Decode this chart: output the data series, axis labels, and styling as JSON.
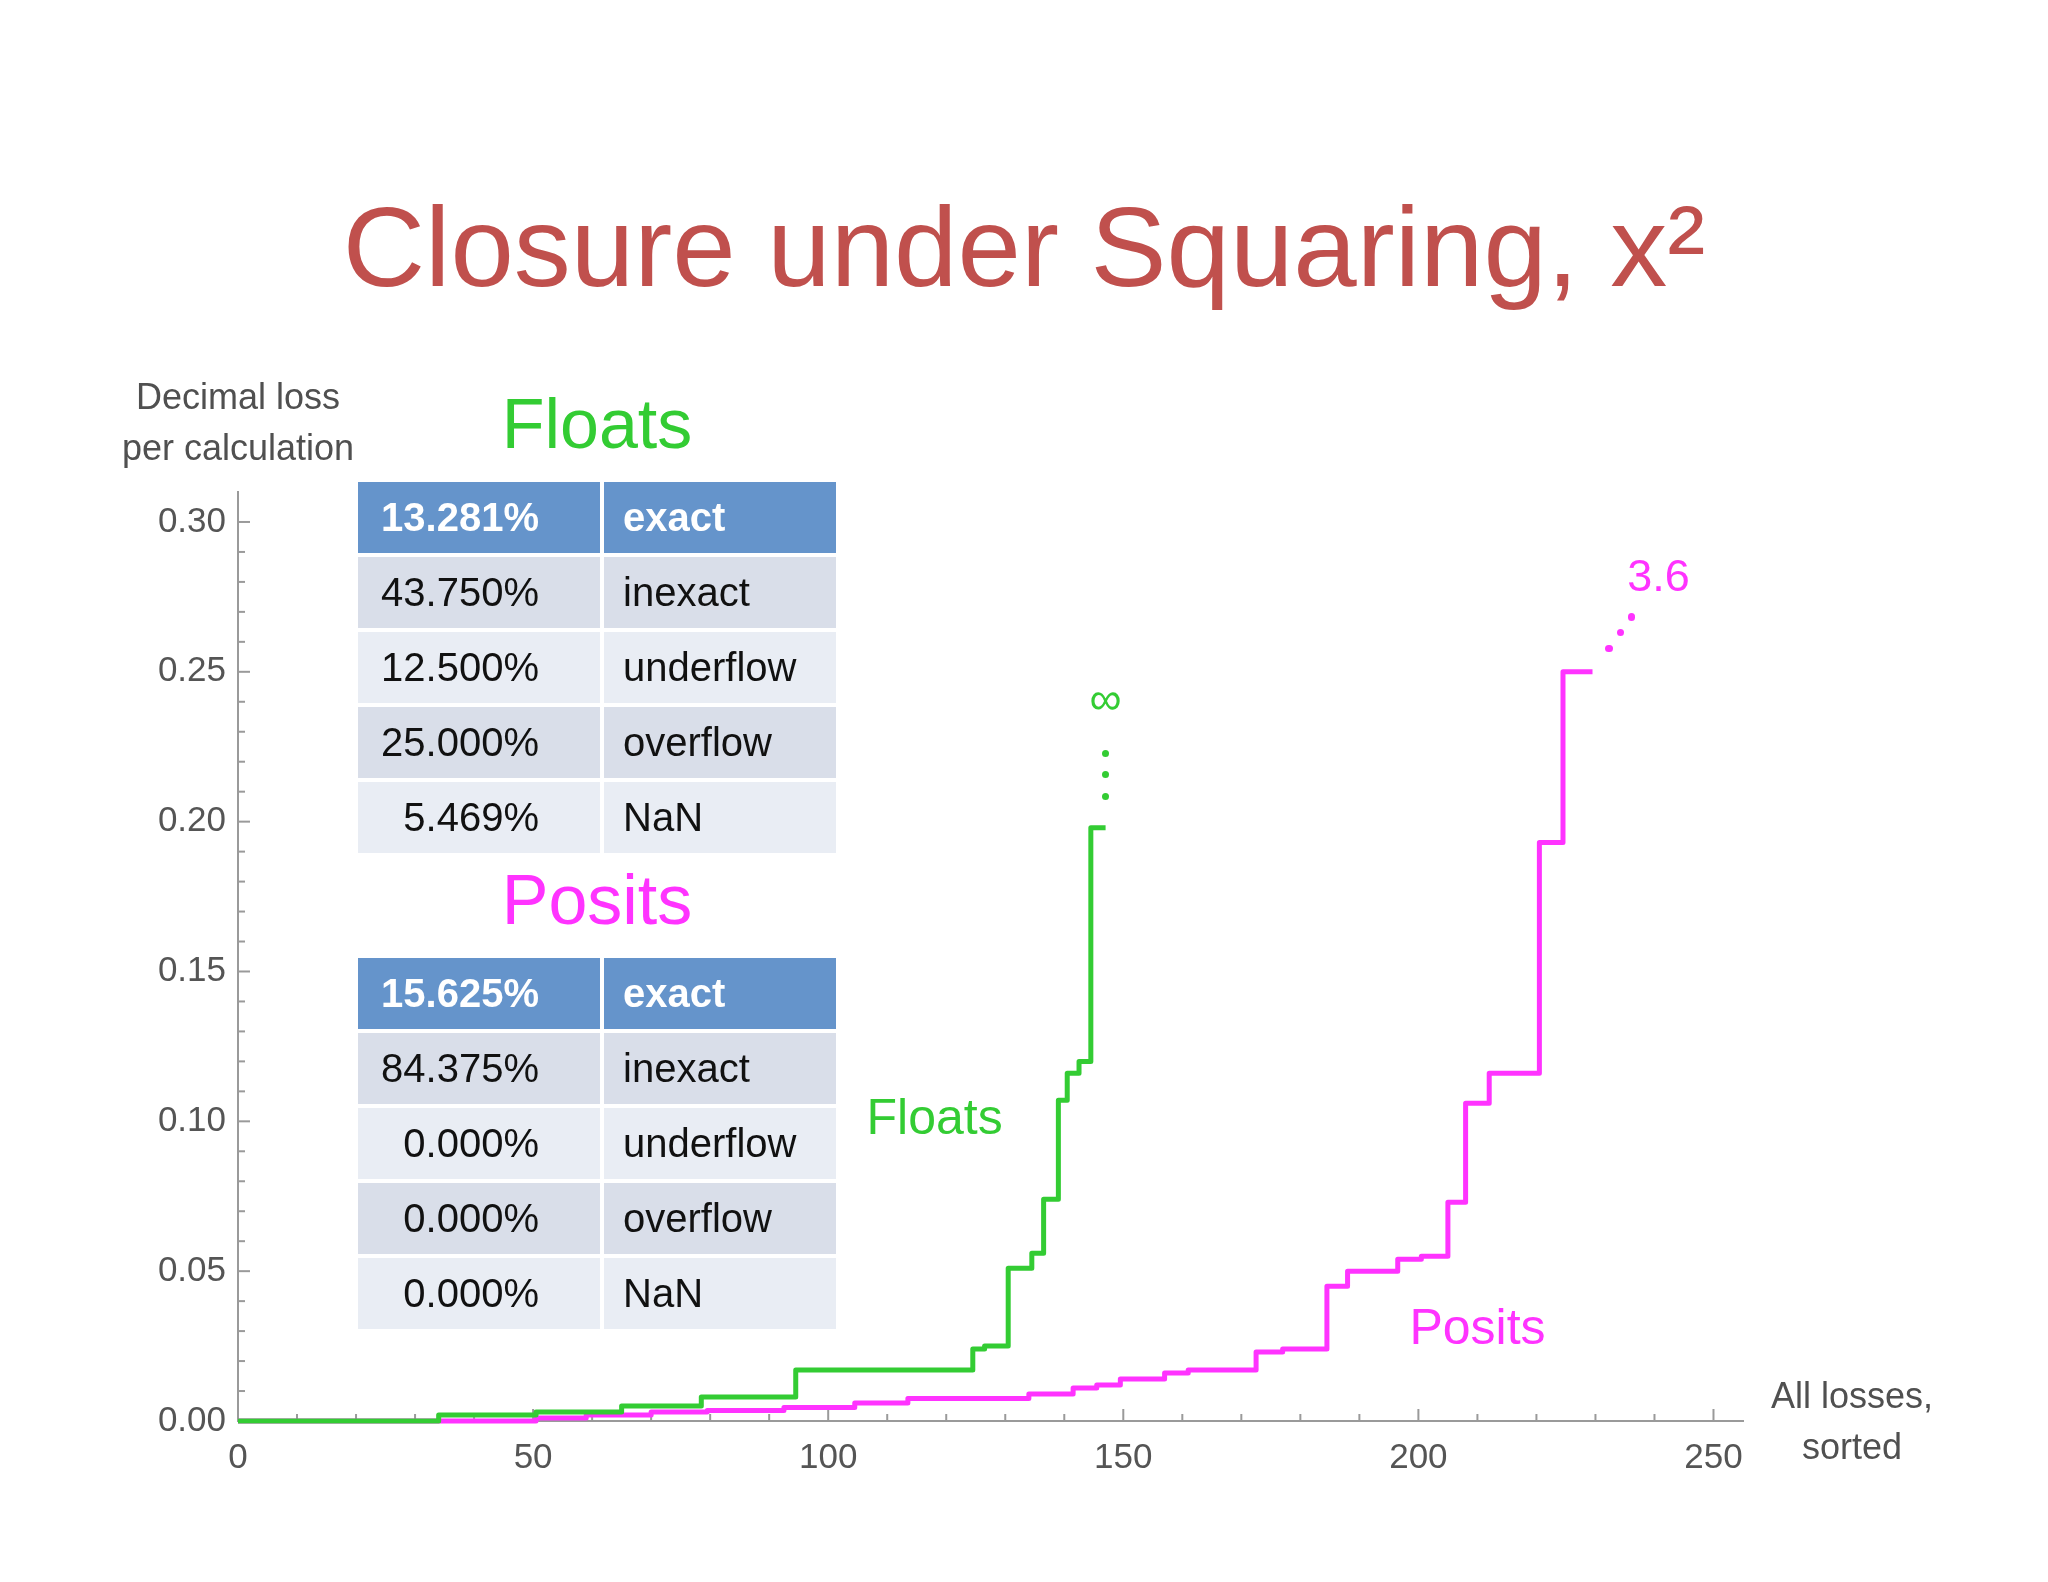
{
  "chart_data": [
    {
      "type": "step",
      "title": "Closure under Squaring, x²",
      "xlabel": "All losses, sorted",
      "ylabel": "Decimal loss per calculation",
      "series": [
        {
          "name": "Floats",
          "color": "#33cc33",
          "x": [
            0,
            34,
            50.5,
            65,
            78.5,
            94.5,
            124.5,
            126.5,
            130.5,
            134.5,
            136.5,
            139,
            140.5,
            142.5,
            144.5,
            147
          ],
          "values": [
            0,
            0.002,
            0.003,
            0.005,
            0.008,
            0.017,
            0.024,
            0.025,
            0.051,
            0.056,
            0.074,
            0.107,
            0.116,
            0.12,
            0.198,
            0.198
          ]
        },
        {
          "name": "Posits",
          "color": "#ff33ff",
          "x": [
            0,
            50.5,
            59,
            70,
            79.5,
            92.5,
            104.5,
            113.5,
            134,
            141.5,
            145.5,
            149.5,
            157,
            161,
            172.5,
            177,
            184.5,
            188,
            196.5,
            200.5,
            205,
            208,
            212,
            220.5,
            224.5,
            229.5
          ],
          "values": [
            0,
            0.001,
            0.002,
            0.003,
            0.0035,
            0.0045,
            0.006,
            0.0075,
            0.009,
            0.011,
            0.012,
            0.014,
            0.016,
            0.017,
            0.023,
            0.024,
            0.045,
            0.05,
            0.054,
            0.055,
            0.073,
            0.106,
            0.116,
            0.193,
            0.25,
            0.25
          ]
        }
      ],
      "annotations": [
        "∞",
        "3.6"
      ],
      "xlim": [
        0,
        255
      ],
      "xticks": [
        0,
        {
          "value": 10,
          "label": null
        },
        {
          "value": 20,
          "label": null
        },
        {
          "value": 30,
          "label": null
        },
        {
          "value": 40,
          "label": null
        },
        50,
        {
          "value": 60,
          "label": null
        },
        {
          "value": 70,
          "label": null
        },
        {
          "value": 80,
          "label": null
        },
        {
          "value": 90,
          "label": null
        },
        100,
        {
          "value": 110,
          "label": null
        },
        {
          "value": 120,
          "label": null
        },
        {
          "value": 130,
          "label": null
        },
        {
          "value": 140,
          "label": null
        },
        150,
        {
          "value": 160,
          "label": null
        },
        {
          "value": 170,
          "label": null
        },
        {
          "value": 180,
          "label": null
        },
        {
          "value": 190,
          "label": null
        },
        200,
        {
          "value": 210,
          "label": null
        },
        {
          "value": 220,
          "label": null
        },
        {
          "value": 230,
          "label": null
        },
        {
          "value": 240,
          "label": null
        },
        250
      ],
      "ylim": [
        0,
        0.31
      ],
      "yticks": [
        {
          "value": 0,
          "label": "0.00"
        },
        {
          "value": 0.01,
          "label": null
        },
        {
          "value": 0.02,
          "label": null
        },
        {
          "value": 0.03,
          "label": null
        },
        {
          "value": 0.04,
          "label": null
        },
        {
          "value": 0.05,
          "label": "0.05"
        },
        {
          "value": 0.06,
          "label": null
        },
        {
          "value": 0.07,
          "label": null
        },
        {
          "value": 0.08,
          "label": null
        },
        {
          "value": 0.09,
          "label": null
        },
        {
          "value": 0.1,
          "label": "0.10"
        },
        {
          "value": 0.11,
          "label": null
        },
        {
          "value": 0.12,
          "label": null
        },
        {
          "value": 0.13,
          "label": null
        },
        {
          "value": 0.14,
          "label": null
        },
        {
          "value": 0.15,
          "label": "0.15"
        },
        {
          "value": 0.16,
          "label": null
        },
        {
          "value": 0.17,
          "label": null
        },
        {
          "value": 0.18,
          "label": null
        },
        {
          "value": 0.19,
          "label": null
        },
        {
          "value": 0.2,
          "label": "0.20"
        },
        {
          "value": 0.21,
          "label": null
        },
        {
          "value": 0.22,
          "label": null
        },
        {
          "value": 0.23,
          "label": null
        },
        {
          "value": 0.24,
          "label": null
        },
        {
          "value": 0.25,
          "label": "0.25"
        },
        {
          "value": 0.26,
          "label": null
        },
        {
          "value": 0.27,
          "label": null
        },
        {
          "value": 0.28,
          "label": null
        },
        {
          "value": 0.29,
          "label": null
        },
        {
          "value": 0.3,
          "label": "0.30"
        }
      ]
    },
    {
      "type": "other",
      "categories": [
        "exact",
        "inexact",
        "underflow",
        "overflow",
        "NaN"
      ],
      "series": [
        {
          "name": "Floats",
          "colors": [
            "#6594cb",
            "#d9dee9",
            "#e9edf4",
            "#d9dee9",
            "#e9edf4"
          ],
          "values": [
            13.281,
            43.75,
            12.5,
            25,
            5.469
          ],
          "value_labels": [
            "13.281%",
            "43.750%",
            "12.500%",
            "25.000%",
            "5.469%"
          ]
        },
        {
          "name": "Posits",
          "colors": [
            "#6594cb",
            "#d9dee9",
            "#e9edf4",
            "#d9dee9",
            "#e9edf4"
          ],
          "values": [
            15.625,
            84.375,
            0,
            0,
            0
          ],
          "value_labels": [
            "15.625%",
            "84.375%",
            "0.000%",
            "0.000%",
            "0.000%"
          ]
        }
      ]
    }
  ]
}
